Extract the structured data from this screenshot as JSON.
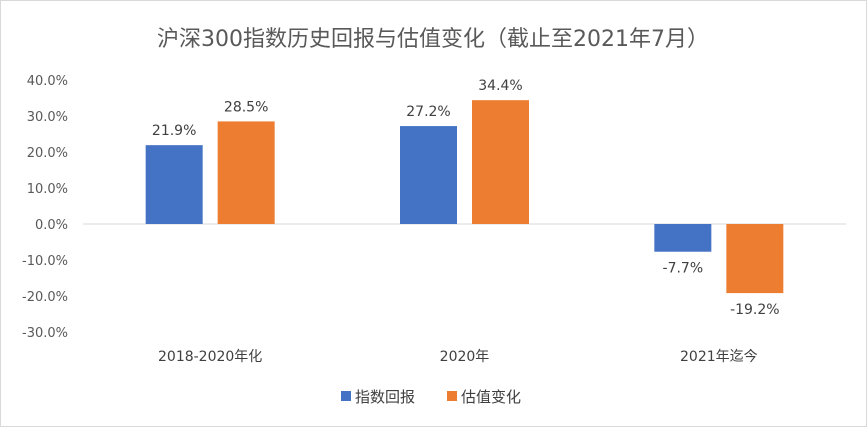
{
  "chart_data": {
    "type": "bar",
    "title": "沪深300指数历史回报与估值变化（截止至2021年7月）",
    "xlabel": "",
    "ylabel": "",
    "categories": [
      "2018-2020年化",
      "2020年",
      "2021年迄今"
    ],
    "series": [
      {
        "name": "指数回报",
        "color": "#4472C4",
        "values": [
          21.9,
          27.2,
          -7.7
        ],
        "labels": [
          "21.9%",
          "27.2%",
          "-7.7%"
        ]
      },
      {
        "name": "估值变化",
        "color": "#ED7D31",
        "values": [
          28.5,
          34.4,
          -19.2
        ],
        "labels": [
          "28.5%",
          "34.4%",
          "-19.2%"
        ]
      }
    ],
    "ylim": [
      -30,
      40
    ],
    "yticks": [
      40,
      30,
      20,
      10,
      0,
      -10,
      -20,
      -30
    ],
    "ytick_labels": [
      "40.0%",
      "30.0%",
      "20.0%",
      "10.0%",
      "0.0%",
      "-10.0%",
      "-20.0%",
      "-30.0%"
    ],
    "grid": false,
    "legend_position": "bottom"
  }
}
